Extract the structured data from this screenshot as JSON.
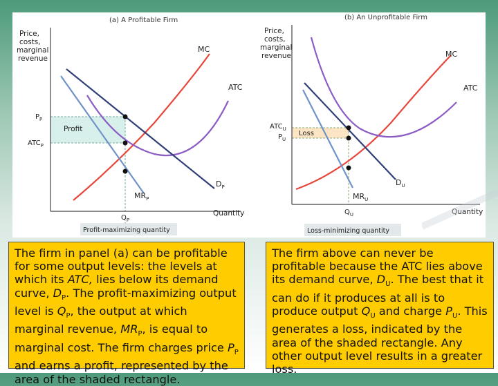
{
  "chart_data": [
    {
      "type": "line",
      "title": "(a) A Profitable Firm",
      "ylabel": "Price, costs, marginal revenue",
      "xlabel": "Quantity",
      "footer": "Profit-maximizing quantity",
      "curves": [
        {
          "name": "MC",
          "label": "MC",
          "color": "#e8463b"
        },
        {
          "name": "ATC",
          "label": "ATC",
          "color": "#8a5cc4"
        },
        {
          "name": "D",
          "label": "D",
          "sub": "P",
          "color": "#2f3f78"
        },
        {
          "name": "MR",
          "label": "MR",
          "sub": "P",
          "color": "#6f93c8"
        }
      ],
      "y_ticks": [
        {
          "label": "P",
          "sub": "P"
        },
        {
          "label": "ATC",
          "sub": "P"
        }
      ],
      "x_ticks": [
        {
          "label": "Q",
          "sub": "P"
        }
      ],
      "shaded": {
        "label": "Profit",
        "color": "#d7f0ec"
      }
    },
    {
      "type": "line",
      "title": "(b) An Unprofitable Firm",
      "ylabel": "Price, costs, marginal revenue",
      "xlabel": "Quantity",
      "footer": "Loss-minimizing quantity",
      "curves": [
        {
          "name": "MC",
          "label": "MC",
          "color": "#e8463b"
        },
        {
          "name": "ATC",
          "label": "ATC",
          "color": "#8a5cc4"
        },
        {
          "name": "D",
          "label": "D",
          "sub": "U",
          "color": "#2f3f78"
        },
        {
          "name": "MR",
          "label": "MR",
          "sub": "U",
          "color": "#6f93c8"
        }
      ],
      "y_ticks": [
        {
          "label": "ATC",
          "sub": "U"
        },
        {
          "label": "P",
          "sub": "U"
        }
      ],
      "x_ticks": [
        {
          "label": "Q",
          "sub": "U"
        }
      ],
      "shaded": {
        "label": "Loss",
        "color": "#fbe5c4"
      }
    }
  ],
  "captions": {
    "a": {
      "t1": "The firm in panel (a) can be profitable for some output levels: the levels at which its ",
      "atc": "ATC,",
      "t2": " lies below its demand curve, ",
      "d": "D",
      "dsub": "P",
      "t3": ". The profit-maximizing output level is ",
      "q": "Q",
      "qsub": "P",
      "t4": ", the output at which marginal revenue, ",
      "mr": "MR",
      "mrsub": "P",
      "t5": ", is equal to marginal cost. The firm charges price ",
      "p": "P",
      "psub": "P",
      "t6": " and earns a profit, represented by the area of the shaded rectangle."
    },
    "b": {
      "t1": "The firm above can never be profitable because the ATC lies above its demand curve, ",
      "d": "D",
      "dsub": "U",
      "t2": ". The best that it can do if it produces at all is to produce output ",
      "q": "Q",
      "qsub": "U",
      "t3": " and charge ",
      "p": "P",
      "psub": "U",
      "t4": ". This generates a loss, indicated by the area of the shaded rectangle. Any other output level results in a greater loss."
    }
  }
}
